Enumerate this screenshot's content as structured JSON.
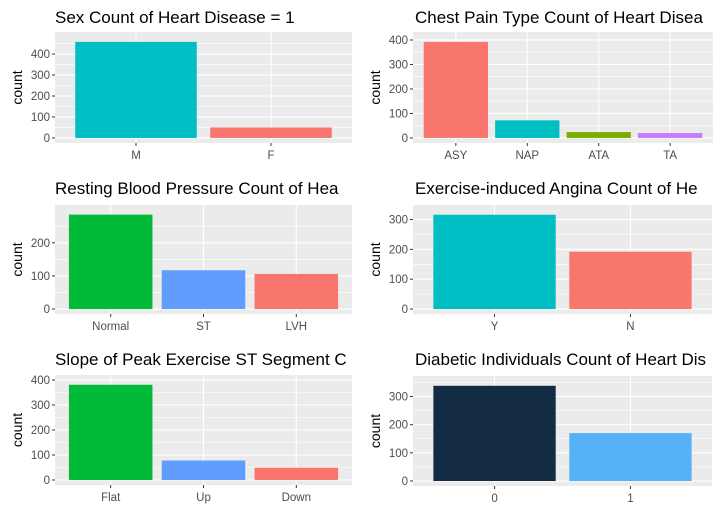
{
  "figure": {
    "panel_background": "#EBEBEB",
    "grid_color": "#FFFFFF",
    "tick_color": "#333333"
  },
  "chart_data": [
    {
      "type": "bar",
      "title": "Sex Count of Heart Disease = 1",
      "xlabel": "",
      "ylabel": "count",
      "categories": [
        "M",
        "F"
      ],
      "values": [
        458,
        50
      ],
      "colors": [
        "#00BFC4",
        "#F8766D"
      ],
      "ylim": [
        0,
        481
      ],
      "yticks": [
        0,
        100,
        200,
        300,
        400
      ],
      "grid": true,
      "legend": "none"
    },
    {
      "type": "bar",
      "title": "Chest Pain Type Count of Heart Disea",
      "xlabel": "",
      "ylabel": "count",
      "categories": [
        "ASY",
        "NAP",
        "ATA",
        "TA"
      ],
      "values": [
        392,
        72,
        24,
        20
      ],
      "colors": [
        "#F8766D",
        "#00BFC4",
        "#7CAE00",
        "#C77CFF"
      ],
      "ylim": [
        0,
        412
      ],
      "yticks": [
        0,
        100,
        200,
        300,
        400
      ],
      "grid": true,
      "legend": "none"
    },
    {
      "type": "bar",
      "title": "Resting Blood Pressure Count of Hea",
      "xlabel": "",
      "ylabel": "count",
      "categories": [
        "Normal",
        "ST",
        "LVH"
      ],
      "values": [
        285,
        117,
        106
      ],
      "colors": [
        "#00BA38",
        "#619CFF",
        "#F8766D"
      ],
      "ylim": [
        0,
        299
      ],
      "yticks": [
        0,
        100,
        200
      ],
      "grid": true,
      "legend": "none"
    },
    {
      "type": "bar",
      "title": "Exercise-induced Angina Count of He",
      "xlabel": "",
      "ylabel": "count",
      "categories": [
        "Y",
        "N"
      ],
      "values": [
        316,
        192
      ],
      "colors": [
        "#00BFC4",
        "#F8766D"
      ],
      "ylim": [
        0,
        332
      ],
      "yticks": [
        0,
        100,
        200,
        300
      ],
      "grid": true,
      "legend": "none"
    },
    {
      "type": "bar",
      "title": "Slope of Peak Exercise ST Segment C",
      "xlabel": "",
      "ylabel": "count",
      "categories": [
        "Flat",
        "Up",
        "Down"
      ],
      "values": [
        381,
        78,
        49
      ],
      "colors": [
        "#00BA38",
        "#619CFF",
        "#F8766D"
      ],
      "ylim": [
        0,
        400
      ],
      "yticks": [
        0,
        100,
        200,
        300,
        400
      ],
      "grid": true,
      "legend": "none"
    },
    {
      "type": "bar",
      "title": "Diabetic Individuals Count of Heart Dis",
      "xlabel": "",
      "ylabel": "count",
      "categories": [
        "0",
        "1"
      ],
      "values": [
        338,
        170
      ],
      "colors": [
        "#132B43",
        "#56B1F7"
      ],
      "ylim": [
        0,
        355
      ],
      "yticks": [
        0,
        100,
        200,
        300
      ],
      "grid": true,
      "legend": "none"
    }
  ]
}
